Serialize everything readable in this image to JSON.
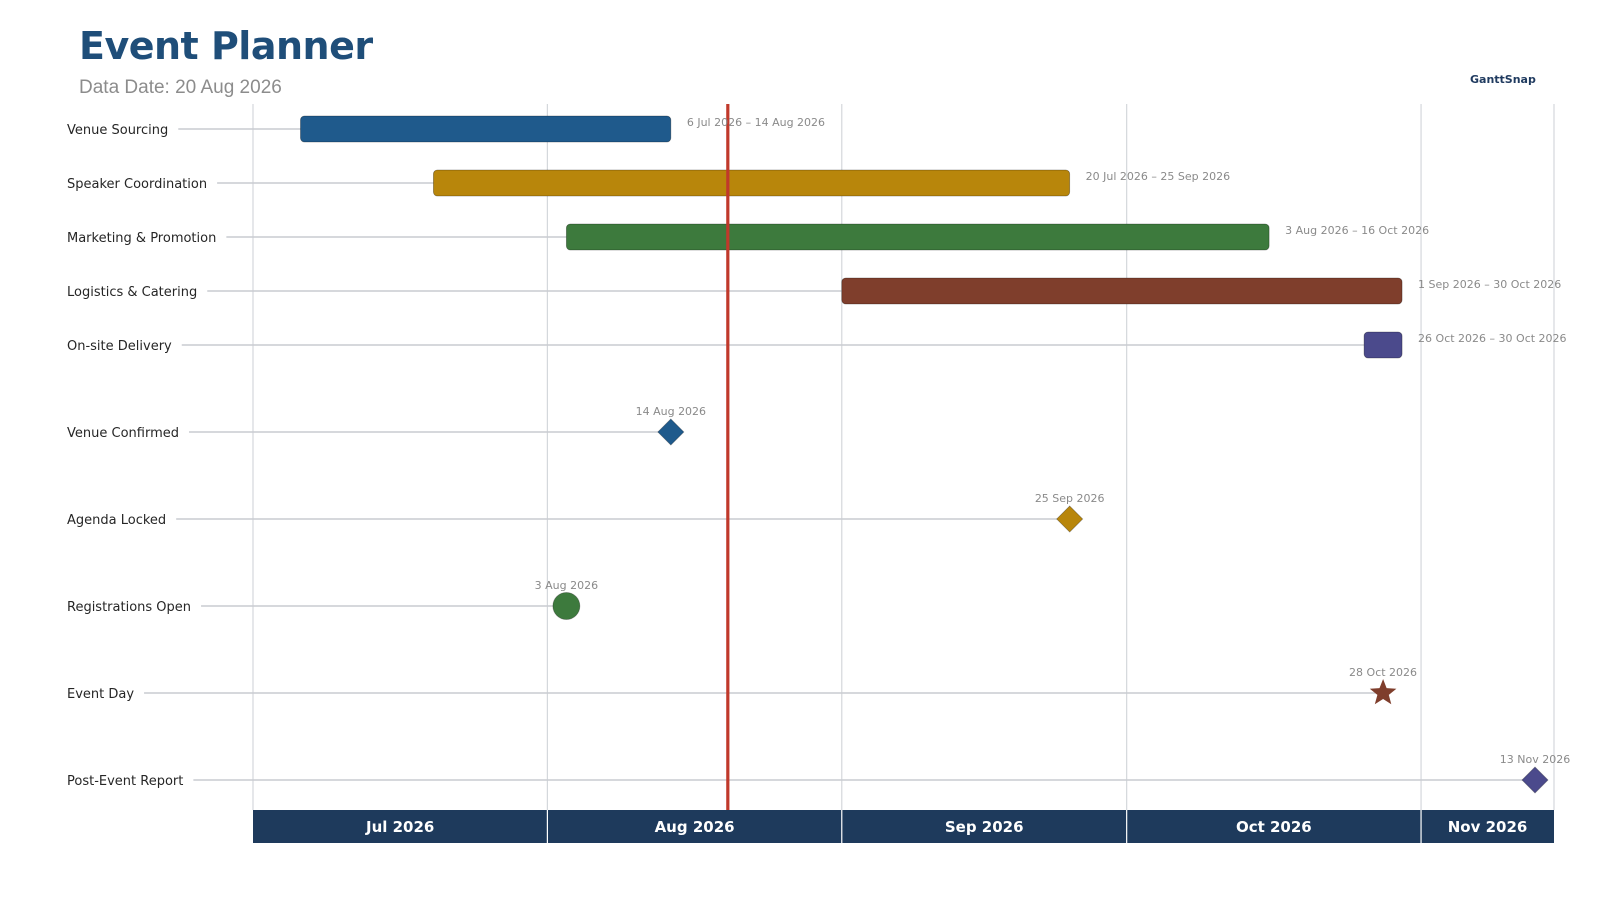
{
  "title": "Event Planner",
  "subtitle": "Data Date: 20 Aug 2026",
  "brand": "GanttSnap",
  "chart_data": {
    "type": "gantt",
    "title": "Event Planner",
    "data_date": "2026-08-20",
    "timeline_start": "2026-07-01",
    "timeline_end": "2026-11-15",
    "months": [
      {
        "label": "Jul 2026",
        "start": "2026-07-01",
        "end": "2026-08-01"
      },
      {
        "label": "Aug 2026",
        "start": "2026-08-01",
        "end": "2026-09-01"
      },
      {
        "label": "Sep 2026",
        "start": "2026-09-01",
        "end": "2026-10-01"
      },
      {
        "label": "Oct 2026",
        "start": "2026-10-01",
        "end": "2026-11-01"
      },
      {
        "label": "Nov 2026",
        "start": "2026-11-01",
        "end": "2026-11-15"
      }
    ],
    "tasks": [
      {
        "name": "Venue Sourcing",
        "start": "2026-07-06",
        "end": "2026-08-14",
        "range_label": "6 Jul 2026 – 14 Aug 2026",
        "color": "#1f5a8c"
      },
      {
        "name": "Speaker Coordination",
        "start": "2026-07-20",
        "end": "2026-09-25",
        "range_label": "20 Jul 2026 – 25 Sep 2026",
        "color": "#b8860b"
      },
      {
        "name": "Marketing & Promotion",
        "start": "2026-08-03",
        "end": "2026-10-16",
        "range_label": "3 Aug 2026 – 16 Oct 2026",
        "color": "#3d7a3d"
      },
      {
        "name": "Logistics & Catering",
        "start": "2026-09-01",
        "end": "2026-10-30",
        "range_label": "1 Sep 2026 – 30 Oct 2026",
        "color": "#7f3e2c"
      },
      {
        "name": "On-site Delivery",
        "start": "2026-10-26",
        "end": "2026-10-30",
        "range_label": "26 Oct 2026 – 30 Oct 2026",
        "color": "#4b4a8c"
      }
    ],
    "milestones": [
      {
        "name": "Venue Confirmed",
        "date": "2026-08-14",
        "date_label": "14 Aug 2026",
        "shape": "diamond",
        "color": "#1f5a8c"
      },
      {
        "name": "Agenda Locked",
        "date": "2026-09-25",
        "date_label": "25 Sep 2026",
        "shape": "diamond",
        "color": "#b8860b"
      },
      {
        "name": "Registrations Open",
        "date": "2026-08-03",
        "date_label": "3 Aug 2026",
        "shape": "circle",
        "color": "#3d7a3d"
      },
      {
        "name": "Event Day",
        "date": "2026-10-28",
        "date_label": "28 Oct 2026",
        "shape": "star",
        "color": "#7f3e2c"
      },
      {
        "name": "Post-Event Report",
        "date": "2026-11-13",
        "date_label": "13 Nov 2026",
        "shape": "diamond",
        "color": "#4b4a8c"
      }
    ],
    "today_line_color": "#c0392b",
    "header_color": "#1e3a5c",
    "grid": true
  }
}
